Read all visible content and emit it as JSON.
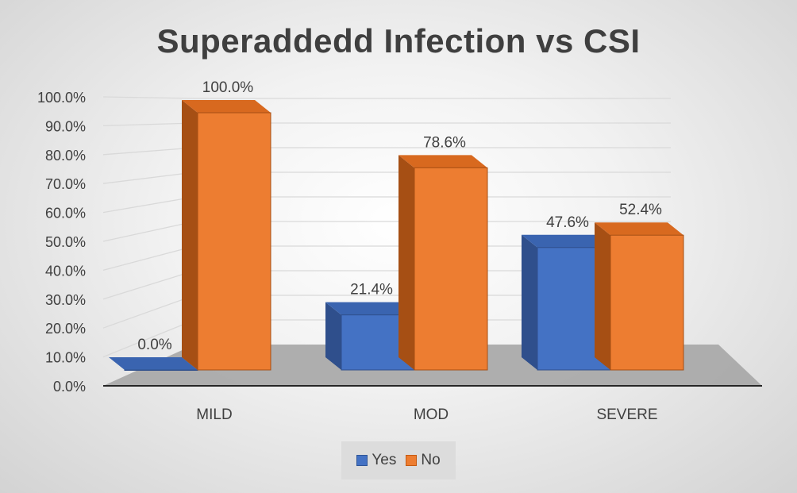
{
  "chart_data": {
    "type": "bar",
    "title": "Superaddedd Infection vs CSI",
    "categories": [
      "MILD",
      "MOD",
      "SEVERE"
    ],
    "series": [
      {
        "name": "Yes",
        "values": [
          0.0,
          21.4,
          47.6
        ],
        "labels": [
          "0.0%",
          "21.4%",
          "47.6%"
        ]
      },
      {
        "name": "No",
        "values": [
          100.0,
          78.6,
          52.4
        ],
        "labels": [
          "100.0%",
          "78.6%",
          "52.4%"
        ]
      }
    ],
    "ylim": [
      0,
      100
    ],
    "y_ticks": [
      "0.0%",
      "10.0%",
      "20.0%",
      "30.0%",
      "40.0%",
      "50.0%",
      "60.0%",
      "70.0%",
      "80.0%",
      "90.0%",
      "100.0%"
    ],
    "xlabel": "",
    "ylabel": "",
    "grid": true,
    "legend_position": "bottom",
    "style": "3d-column"
  },
  "colors": {
    "yes": "#4472c4",
    "yes_side": "#2f4f8c",
    "yes_top": "#3a64b0",
    "no": "#ed7d31",
    "no_side": "#a64f14",
    "no_top": "#d8691f",
    "floor": "#a6a6a6",
    "gridline": "#d9d9d9",
    "text": "#404040"
  }
}
